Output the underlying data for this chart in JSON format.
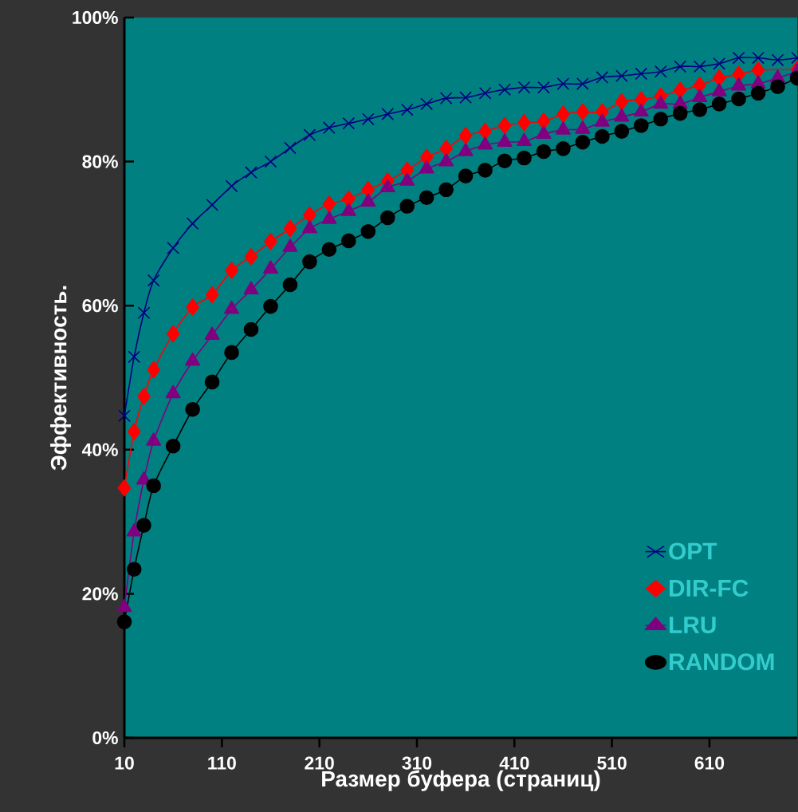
{
  "chart_data": {
    "type": "line",
    "xlabel": "Размер буфера (страниц)",
    "ylabel": "Эффективность.",
    "x": [
      10,
      20,
      30,
      40,
      60,
      80,
      100,
      120,
      140,
      160,
      180,
      200,
      220,
      240,
      260,
      280,
      300,
      320,
      340,
      360,
      380,
      400,
      420,
      440,
      460,
      480,
      500,
      520,
      540,
      560,
      580,
      600,
      620,
      640,
      660,
      680,
      700
    ],
    "series": [
      {
        "name": "OPT",
        "color": "#000080",
        "marker": "cross",
        "values": [
          44.7,
          52.9,
          59.0,
          63.5,
          68.0,
          71.4,
          74.0,
          76.6,
          78.5,
          80.0,
          81.9,
          83.7,
          84.7,
          85.3,
          85.9,
          86.6,
          87.2,
          88.0,
          88.8,
          88.9,
          89.5,
          90.0,
          90.3,
          90.3,
          90.8,
          90.8,
          91.7,
          91.9,
          92.2,
          92.5,
          93.2,
          93.2,
          93.6,
          94.4,
          94.4,
          94.1,
          94.4
        ]
      },
      {
        "name": "DIR-FC",
        "color": "#ff0000",
        "marker": "diamond",
        "values": [
          34.7,
          42.5,
          47.4,
          51.1,
          56.1,
          59.8,
          61.5,
          64.9,
          66.8,
          68.9,
          70.7,
          72.6,
          74.1,
          74.8,
          76.1,
          77.3,
          78.8,
          80.6,
          81.8,
          83.6,
          84.2,
          85.0,
          85.4,
          85.6,
          86.6,
          86.9,
          86.9,
          88.3,
          88.6,
          89.1,
          89.9,
          90.6,
          91.6,
          92.1,
          92.7,
          null,
          92.8
        ]
      },
      {
        "name": "LRU",
        "color": "#800080",
        "marker": "triangle",
        "values": [
          18.1,
          28.6,
          35.8,
          41.2,
          47.8,
          52.3,
          55.9,
          59.5,
          62.2,
          65.1,
          68.1,
          70.7,
          72.0,
          73.1,
          74.4,
          76.4,
          77.3,
          79.0,
          80.0,
          81.4,
          82.3,
          82.7,
          82.8,
          83.8,
          84.4,
          84.5,
          85.5,
          86.2,
          86.9,
          88.0,
          88.0,
          88.9,
          89.7,
          90.5,
          90.8,
          91.6,
          92.5
        ]
      },
      {
        "name": "RANDOM",
        "color": "#000000",
        "marker": "circle",
        "values": [
          16.1,
          23.4,
          29.5,
          35.0,
          40.5,
          45.6,
          49.4,
          53.5,
          56.7,
          59.9,
          62.9,
          66.1,
          67.8,
          69.0,
          70.3,
          72.2,
          73.8,
          75.0,
          76.1,
          78.0,
          78.8,
          80.1,
          80.5,
          81.4,
          81.8,
          82.7,
          83.5,
          84.2,
          85.0,
          85.9,
          86.7,
          87.2,
          88.0,
          88.7,
          89.5,
          90.4,
          91.6
        ]
      }
    ],
    "xlim": [
      10,
      700
    ],
    "xticks": [
      10,
      110,
      210,
      310,
      410,
      510,
      610
    ],
    "ylim": [
      0,
      100
    ],
    "yticks": [
      {
        "value": 0,
        "label": "0%"
      },
      {
        "value": 20,
        "label": "20%"
      },
      {
        "value": 40,
        "label": "40%"
      },
      {
        "value": 60,
        "label": "60%"
      },
      {
        "value": 80,
        "label": "80%"
      },
      {
        "value": 100,
        "label": "100%"
      }
    ],
    "legend": "bottom right",
    "line_style": "solid",
    "grid": false
  }
}
